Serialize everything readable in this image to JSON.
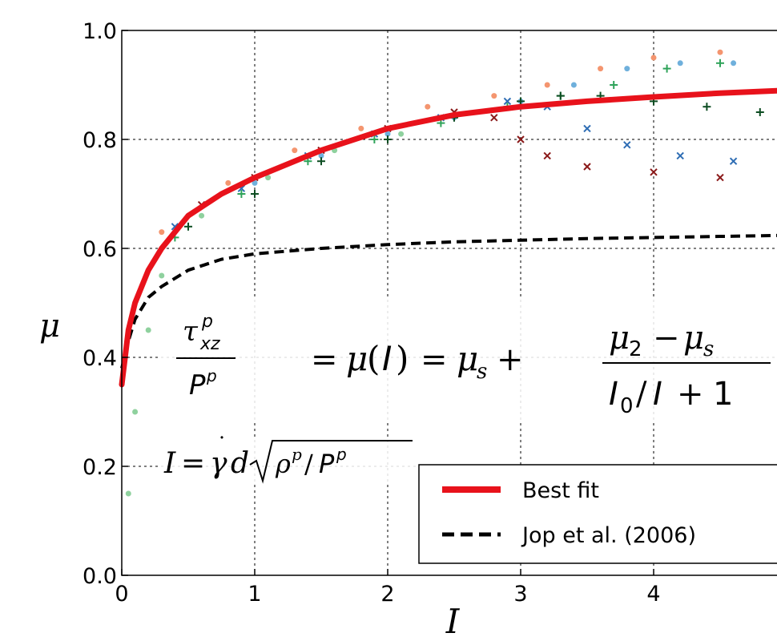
{
  "chart_data": {
    "type": "line",
    "xlabel": "I",
    "ylabel": "μ",
    "xlim": [
      0,
      5
    ],
    "ylim": [
      0,
      1.0
    ],
    "x_ticks": [
      "0",
      "1",
      "2",
      "3",
      "4"
    ],
    "y_ticks": [
      "0.0",
      "0.2",
      "0.4",
      "0.6",
      "0.8",
      "1.0"
    ],
    "grid": true,
    "legend_position": "bottom-right",
    "series": [
      {
        "name": "Best fit",
        "style": "solid",
        "color": "#e8121b",
        "x": [
          0,
          0.05,
          0.1,
          0.2,
          0.3,
          0.5,
          0.75,
          1.0,
          1.5,
          2.0,
          2.5,
          3.0,
          3.5,
          4.0,
          4.5,
          5.0
        ],
        "y": [
          0.35,
          0.45,
          0.5,
          0.56,
          0.6,
          0.66,
          0.7,
          0.73,
          0.78,
          0.82,
          0.845,
          0.86,
          0.87,
          0.878,
          0.885,
          0.89
        ]
      },
      {
        "name": "Jop et al. (2006)",
        "style": "dashed",
        "color": "#000000",
        "x": [
          0,
          0.05,
          0.1,
          0.2,
          0.3,
          0.5,
          0.75,
          1.0,
          1.5,
          2.0,
          2.5,
          3.0,
          3.5,
          4.0,
          4.5,
          5.0
        ],
        "y": [
          0.38,
          0.43,
          0.47,
          0.51,
          0.53,
          0.56,
          0.58,
          0.59,
          0.6,
          0.607,
          0.612,
          0.615,
          0.618,
          0.62,
          0.622,
          0.624
        ]
      }
    ],
    "scatter_groups": [
      {
        "color": "#8b1a1a",
        "marker": "x",
        "x": [
          0.6,
          1.0,
          1.5,
          2.0,
          2.5,
          2.8,
          3.0,
          3.2,
          3.5,
          4.0,
          4.5,
          5.0
        ],
        "y": [
          0.68,
          0.73,
          0.78,
          0.82,
          0.85,
          0.84,
          0.8,
          0.77,
          0.75,
          0.74,
          0.73,
          0.72
        ]
      },
      {
        "color": "#f4956f",
        "marker": "o",
        "x": [
          0.3,
          0.8,
          1.3,
          1.8,
          2.3,
          2.8,
          3.2,
          3.6,
          4.0,
          4.5,
          5.0
        ],
        "y": [
          0.63,
          0.72,
          0.78,
          0.82,
          0.86,
          0.88,
          0.9,
          0.93,
          0.95,
          0.96,
          0.96
        ]
      },
      {
        "color": "#2e6db4",
        "marker": "x",
        "x": [
          0.4,
          0.9,
          1.4,
          1.9,
          2.4,
          2.9,
          3.2,
          3.5,
          3.8,
          4.2,
          4.6,
          5.0
        ],
        "y": [
          0.64,
          0.71,
          0.77,
          0.81,
          0.84,
          0.87,
          0.86,
          0.82,
          0.79,
          0.77,
          0.76,
          0.76
        ]
      },
      {
        "color": "#6fb0dc",
        "marker": "o",
        "x": [
          0.5,
          1.0,
          1.5,
          2.0,
          2.5,
          3.0,
          3.4,
          3.8,
          4.2,
          4.6,
          5.0
        ],
        "y": [
          0.66,
          0.72,
          0.77,
          0.81,
          0.84,
          0.87,
          0.9,
          0.93,
          0.94,
          0.94,
          0.93
        ]
      },
      {
        "color": "#2fa35a",
        "marker": "+",
        "x": [
          0.4,
          0.9,
          1.4,
          1.9,
          2.4,
          2.9,
          3.3,
          3.7,
          4.1,
          4.5,
          5.0
        ],
        "y": [
          0.62,
          0.7,
          0.76,
          0.8,
          0.83,
          0.86,
          0.88,
          0.9,
          0.93,
          0.94,
          0.94
        ]
      },
      {
        "color": "#0d4d22",
        "marker": "+",
        "x": [
          0.5,
          1.0,
          1.5,
          2.0,
          2.5,
          3.0,
          3.3,
          3.6,
          4.0,
          4.4,
          4.8
        ],
        "y": [
          0.64,
          0.7,
          0.76,
          0.8,
          0.84,
          0.87,
          0.88,
          0.88,
          0.87,
          0.86,
          0.85
        ]
      },
      {
        "color": "#8fd19e",
        "marker": "o",
        "x": [
          0.05,
          0.1,
          0.2,
          0.3,
          0.6,
          1.1,
          1.6,
          2.1
        ],
        "y": [
          0.15,
          0.3,
          0.45,
          0.55,
          0.66,
          0.73,
          0.78,
          0.81
        ]
      }
    ],
    "annotations": [
      "τ_xz^p / P^p = μ(I) = μ_s + (μ_2 − μ_s) / (I_0/I + 1)",
      "I = γ̇ d √(ρ^p / P^p)"
    ]
  }
}
